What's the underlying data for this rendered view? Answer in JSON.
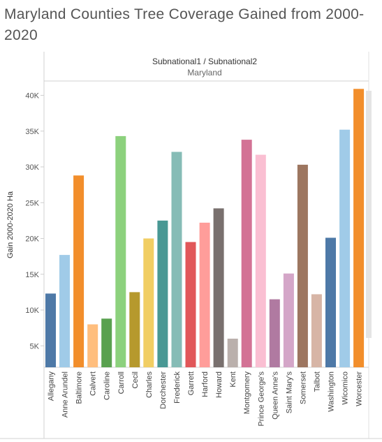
{
  "chart_data": {
    "type": "bar",
    "title": "Maryland Counties Tree Coverage Gained from 2000-2020",
    "column_header": "Subnational1 / Subnational2",
    "column_group": "Maryland",
    "ylabel": "Gain 2000-2020 Ha",
    "ylim": [
      2000,
      42000
    ],
    "yticks": [
      5000,
      10000,
      15000,
      20000,
      25000,
      30000,
      35000,
      40000
    ],
    "ytick_labels": [
      "5K",
      "10K",
      "15K",
      "20K",
      "25K",
      "30K",
      "35K",
      "40K"
    ],
    "grid": false,
    "categories": [
      "Allegany",
      "Anne Arundel",
      "Baltimore",
      "Calvert",
      "Caroline",
      "Carroll",
      "Cecil",
      "Charles",
      "Dorchester",
      "Frederick",
      "Garrett",
      "Harford",
      "Howard",
      "Kent",
      "Montgomery",
      "Prince George's",
      "Queen Anne's",
      "Saint Mary's",
      "Somerset",
      "Talbot",
      "Washington",
      "Wicomico",
      "Worcester"
    ],
    "values": [
      12300,
      17700,
      28800,
      8000,
      8800,
      34300,
      12500,
      20000,
      22500,
      32100,
      19500,
      22200,
      24200,
      6000,
      33800,
      31700,
      11500,
      15100,
      30300,
      12200,
      20100,
      35200,
      40900
    ],
    "colors": [
      "#4e79a7",
      "#a0cbe8",
      "#f28e2b",
      "#ffbe7d",
      "#59a14f",
      "#8cd17d",
      "#b6992d",
      "#f1ce63",
      "#499894",
      "#86bcb6",
      "#e15759",
      "#ff9d9a",
      "#79706e",
      "#bab0ac",
      "#d37295",
      "#fabfd2",
      "#b07aa1",
      "#d4a6c8",
      "#9d7660",
      "#d7b5a6",
      "#4e79a7",
      "#a0cbe8",
      "#f28e2b"
    ]
  }
}
